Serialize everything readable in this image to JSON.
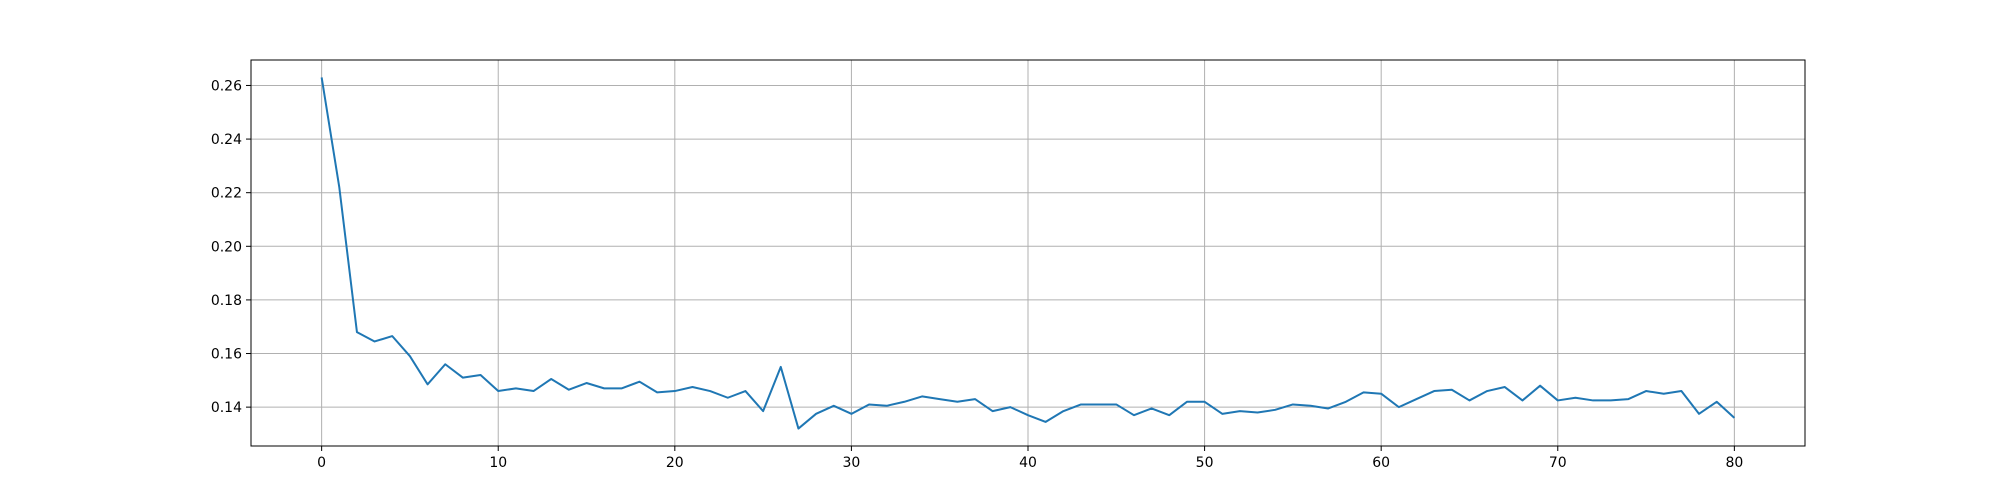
{
  "chart_data": {
    "type": "line",
    "title": "",
    "xlabel": "",
    "ylabel": "",
    "xlim": [
      -4,
      84
    ],
    "ylim": [
      0.1255,
      0.2695
    ],
    "grid": true,
    "legend": "none",
    "colors": {
      "line": "#1f77b4",
      "grid": "#b0b0b0",
      "axis": "#000000",
      "background": "#ffffff"
    },
    "xticks": [
      0,
      10,
      20,
      30,
      40,
      50,
      60,
      70,
      80
    ],
    "xtick_labels": [
      "0",
      "10",
      "20",
      "30",
      "40",
      "50",
      "60",
      "70",
      "80"
    ],
    "yticks": [
      0.14,
      0.16,
      0.18,
      0.2,
      0.22,
      0.24,
      0.26
    ],
    "ytick_labels": [
      "0.14",
      "0.16",
      "0.18",
      "0.20",
      "0.22",
      "0.24",
      "0.26"
    ],
    "series": [
      {
        "x": [
          0,
          1,
          2,
          3,
          4,
          5,
          6,
          7,
          8,
          9,
          10,
          11,
          12,
          13,
          14,
          15,
          16,
          17,
          18,
          19,
          20,
          21,
          22,
          23,
          24,
          25,
          26,
          27,
          28,
          29,
          30,
          31,
          32,
          33,
          34,
          35,
          36,
          37,
          38,
          39,
          40,
          41,
          42,
          43,
          44,
          45,
          46,
          47,
          48,
          49,
          50,
          51,
          52,
          53,
          54,
          55,
          56,
          57,
          58,
          59,
          60,
          61,
          62,
          63,
          64,
          65,
          66,
          67,
          68,
          69,
          70,
          71,
          72,
          73,
          74,
          75,
          76,
          77,
          78,
          79,
          80
        ],
        "values": [
          0.263,
          0.222,
          0.168,
          0.1645,
          0.1665,
          0.159,
          0.1485,
          0.156,
          0.151,
          0.152,
          0.146,
          0.147,
          0.146,
          0.1505,
          0.1465,
          0.149,
          0.147,
          0.147,
          0.1495,
          0.1455,
          0.146,
          0.1475,
          0.146,
          0.1435,
          0.146,
          0.1385,
          0.155,
          0.132,
          0.1375,
          0.1405,
          0.1375,
          0.141,
          0.1405,
          0.142,
          0.144,
          0.143,
          0.142,
          0.143,
          0.1385,
          0.14,
          0.137,
          0.1345,
          0.1385,
          0.141,
          0.141,
          0.141,
          0.137,
          0.1395,
          0.137,
          0.142,
          0.142,
          0.1375,
          0.1385,
          0.138,
          0.139,
          0.141,
          0.1405,
          0.1395,
          0.142,
          0.1455,
          0.145,
          0.14,
          0.143,
          0.146,
          0.1465,
          0.1425,
          0.146,
          0.1475,
          0.1425,
          0.148,
          0.1425,
          0.1435,
          0.1425,
          0.1425,
          0.143,
          0.146,
          0.145,
          0.146,
          0.1375,
          0.142,
          0.136
        ]
      }
    ]
  }
}
